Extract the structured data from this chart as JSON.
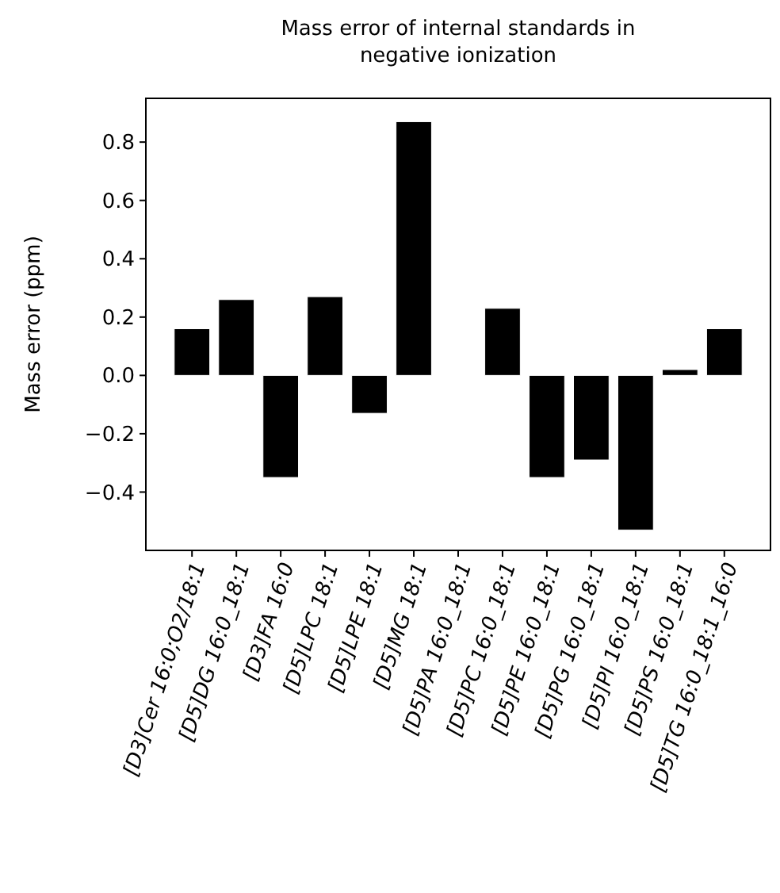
{
  "chart_data": {
    "type": "bar",
    "title": "Mass error of internal standards in\nnegative ionization",
    "ylabel": "Mass error (ppm)",
    "categories": [
      "[D3]Cer 16:0;O2/18:1",
      "[D5]DG 16:0_18:1",
      "[D3]FA 16:0",
      "[D5]LPC 18:1",
      "[D5]LPE 18:1",
      "[D5]MG 18:1",
      "[D5]PA 16:0_18:1",
      "[D5]PC 16:0_18:1",
      "[D5]PE 16:0_18:1",
      "[D5]PG 16:0_18:1",
      "[D5]PI 16:0_18:1",
      "[D5]PS 16:0_18:1",
      "[D5]TG 16:0_18:1_16:0"
    ],
    "values": [
      0.16,
      0.26,
      -0.35,
      0.27,
      -0.13,
      0.87,
      null,
      0.23,
      -0.35,
      -0.29,
      -0.53,
      0.02,
      0.16
    ],
    "color": "#000000",
    "ylim": [
      -0.6,
      0.95
    ],
    "yticks": [
      -0.4,
      -0.2,
      {
        "value": 0,
        "label": "0.0"
      },
      0.2,
      0.4,
      0.6,
      0.8
    ],
    "grid": false
  }
}
